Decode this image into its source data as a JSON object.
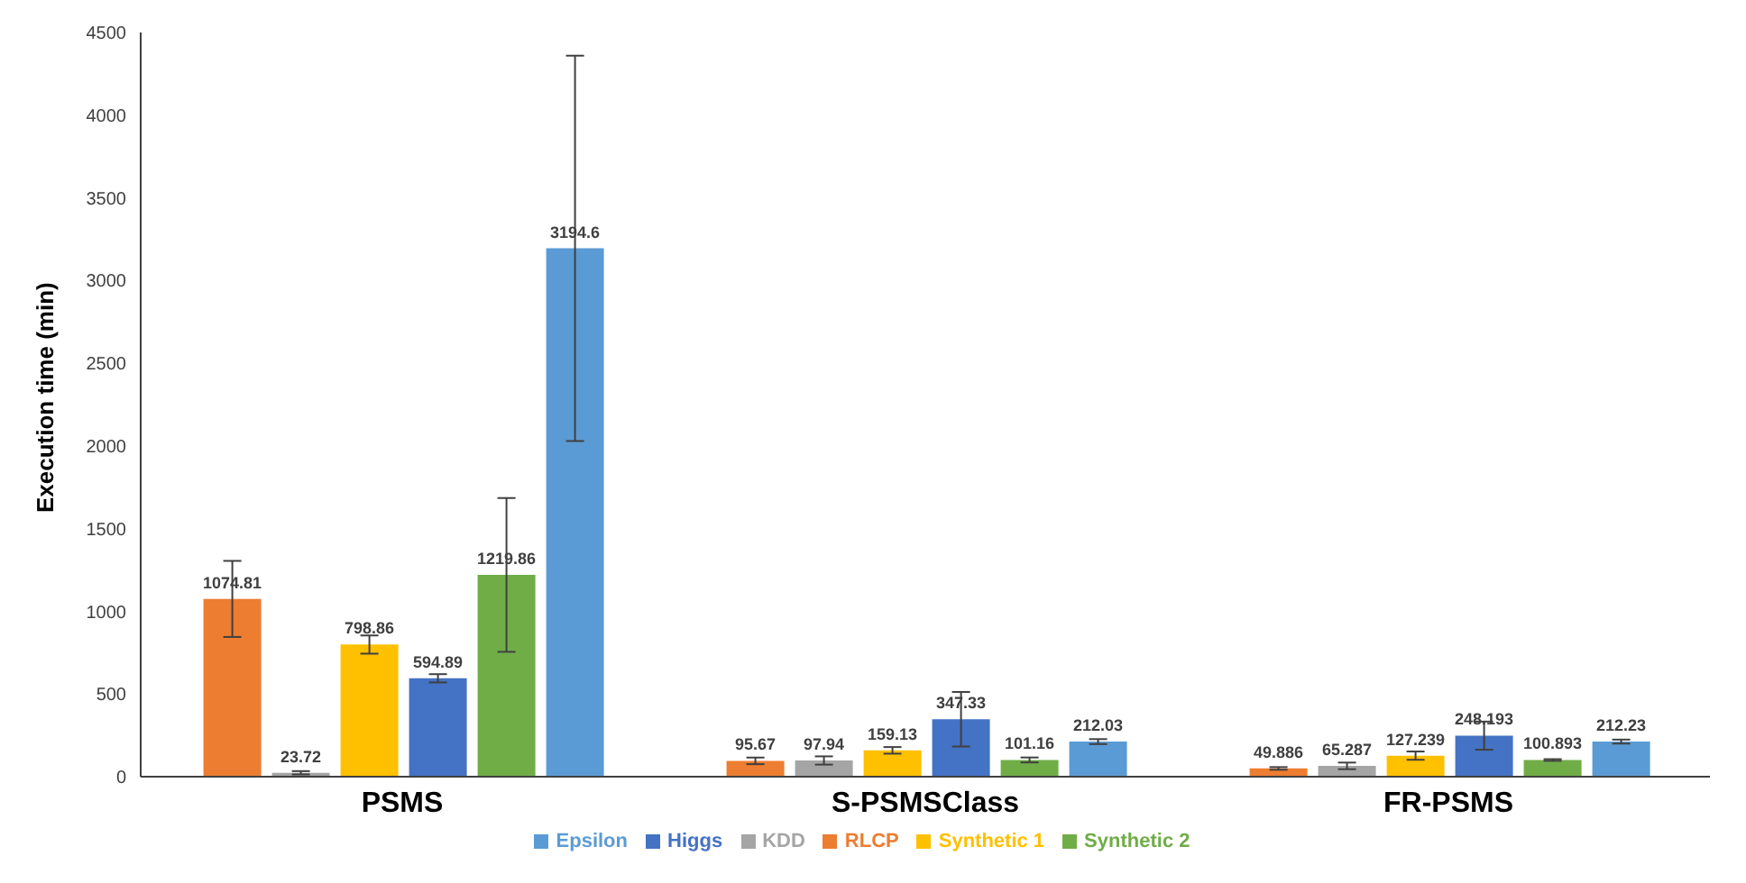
{
  "chart_data": {
    "type": "bar",
    "ylabel": "Execution time (min)",
    "categories": [
      "PSMS",
      "S-PSMSClass",
      "FR-PSMS"
    ],
    "series": [
      {
        "name": "RLCP",
        "color": "#ed7d31",
        "values": [
          1074.81,
          95.67,
          49.886
        ],
        "errors": [
          230,
          20,
          8
        ]
      },
      {
        "name": "KDD",
        "color": "#a5a5a5",
        "values": [
          23.72,
          97.94,
          65.287
        ],
        "errors": [
          10,
          25,
          20
        ]
      },
      {
        "name": "Synthetic 1",
        "color": "#ffc000",
        "values": [
          798.86,
          159.13,
          127.239
        ],
        "errors": [
          55,
          20,
          25
        ]
      },
      {
        "name": "Higgs",
        "color": "#4472c4",
        "values": [
          594.89,
          347.33,
          248.193
        ],
        "errors": [
          25,
          165,
          85
        ]
      },
      {
        "name": "Synthetic 2",
        "color": "#70ad47",
        "values": [
          1219.86,
          101.16,
          100.893
        ],
        "errors": [
          465,
          15,
          5
        ]
      },
      {
        "name": "Epsilon",
        "color": "#5b9bd5",
        "values": [
          3194.6,
          212.03,
          212.23
        ],
        "errors": [
          1165,
          15,
          12
        ]
      }
    ],
    "ylim": [
      0,
      4500
    ],
    "yticks": [
      0,
      500,
      1000,
      1500,
      2000,
      2500,
      3000,
      3500,
      4000,
      4500
    ],
    "grid": false,
    "legend": "bottom",
    "data_labels": true
  }
}
